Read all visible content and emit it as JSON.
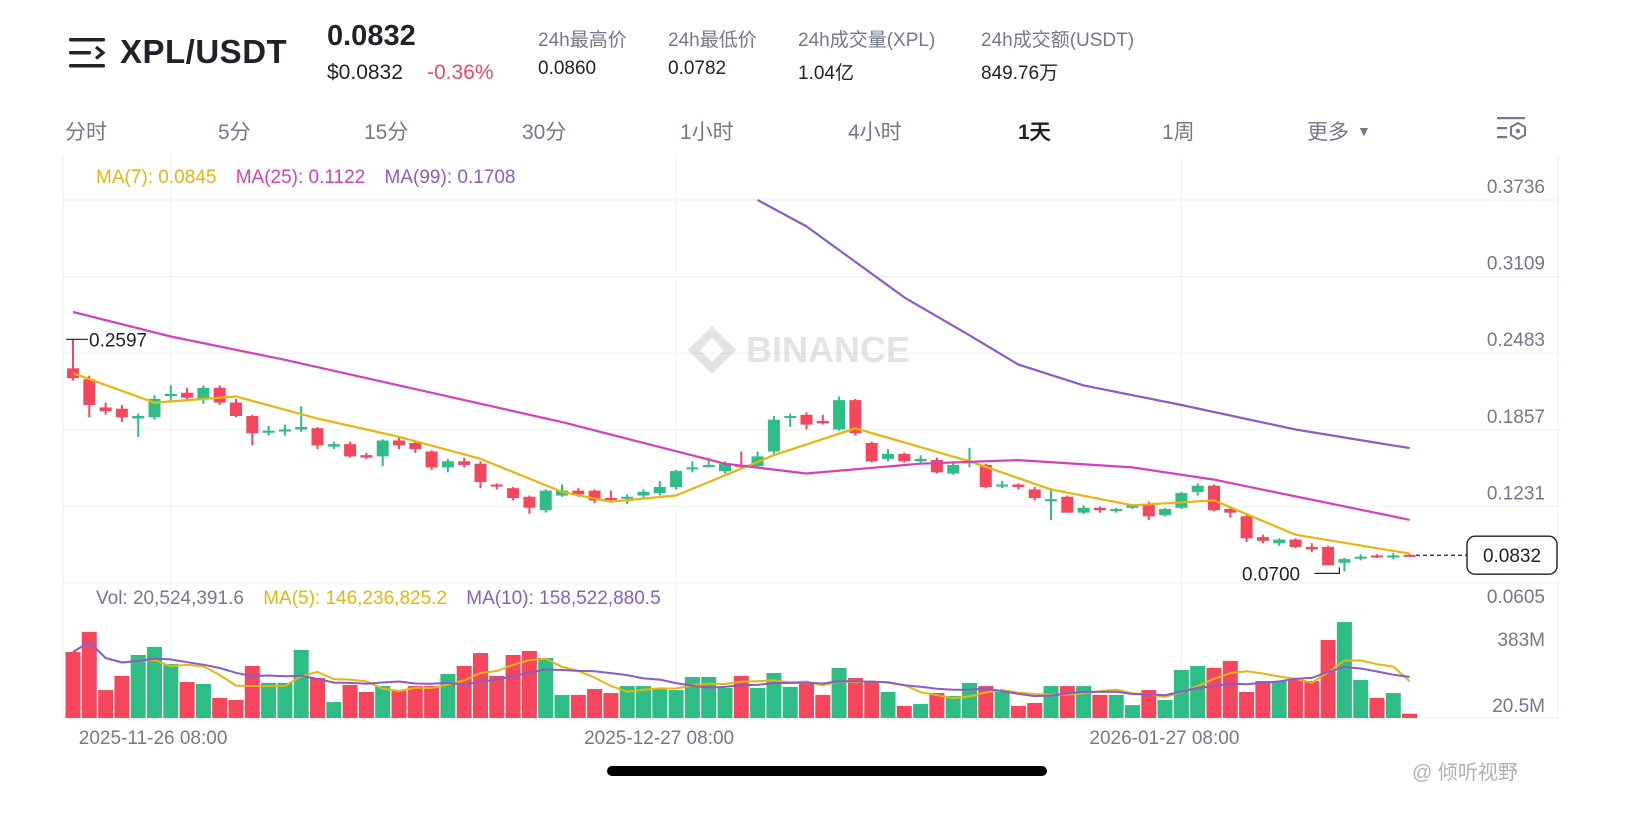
{
  "header": {
    "pair": "XPL/USDT",
    "last_price": "0.0832",
    "usd_price": "$0.0832",
    "change_pct": "-0.36%",
    "stats": [
      {
        "label": "24h最高价",
        "value": "0.0860"
      },
      {
        "label": "24h最低价",
        "value": "0.0782"
      },
      {
        "label": "24h成交量(XPL)",
        "value": "1.04亿"
      },
      {
        "label": "24h成交额(USDT)",
        "value": "849.76万"
      }
    ]
  },
  "tabs": [
    {
      "label": "分时"
    },
    {
      "label": "5分"
    },
    {
      "label": "15分"
    },
    {
      "label": "30分"
    },
    {
      "label": "1小时"
    },
    {
      "label": "4小时"
    },
    {
      "label": "1天",
      "active": true
    },
    {
      "label": "1周"
    },
    {
      "label": "更多"
    }
  ],
  "icons": {
    "menu": "menu-arrow-icon",
    "more_caret": "caret-down-icon",
    "settings": "chart-settings-icon"
  },
  "colors": {
    "up": "#2EBD85",
    "down": "#F6465D",
    "ma7": "#E9B40F",
    "ma25": "#D63FB8",
    "ma99": "#8A5CC8",
    "vol_ma5": "#E9B40F",
    "vol_ma10": "#8A5CC8"
  },
  "watermark": "BINANCE",
  "footer_watermark": "@ 倾听视野",
  "chart_data": {
    "type": "candlestick",
    "interval": "1天",
    "price_legend": [
      {
        "label": "MA(7): 0.0845",
        "color_key": "ma7"
      },
      {
        "label": "MA(25): 0.1122",
        "color_key": "ma25"
      },
      {
        "label": "MA(99): 0.1708",
        "color_key": "ma99"
      }
    ],
    "vol_legend": [
      {
        "label": "Vol: 20,524,391.6",
        "color_key": "text"
      },
      {
        "label": "MA(5): 146,236,825.2",
        "color_key": "vol_ma5"
      },
      {
        "label": "MA(10): 158,522,880.5",
        "color_key": "vol_ma10"
      }
    ],
    "price_ticks": [
      "0.3736",
      "0.3109",
      "0.2483",
      "0.1857",
      "0.1231",
      "0.0605"
    ],
    "price_range": [
      0.0605,
      0.3736
    ],
    "volume_ticks": [
      "383M",
      "20.5M"
    ],
    "volume_unit": "M",
    "x_ticks": [
      {
        "date": "2025-11-26",
        "label": "2025-11-26 08:00"
      },
      {
        "date": "2025-12-27",
        "label": "2025-12-27 08:00"
      },
      {
        "date": "2026-01-27",
        "label": "2026-01-27 08:00"
      }
    ],
    "high_marker": {
      "date": "2025-11-20",
      "label": "0.2597",
      "value": 0.2597
    },
    "low_marker": {
      "date": "2026-02-06",
      "label": "0.0700",
      "value": 0.07
    },
    "current_price": {
      "label": "0.0832",
      "value": 0.0832
    },
    "candles_columns": [
      "date",
      "open",
      "high",
      "low",
      "close",
      "volume_M"
    ],
    "candles": [
      [
        "2025-11-20",
        0.236,
        0.2597,
        0.226,
        0.228,
        312
      ],
      [
        "2025-11-21",
        0.227,
        0.23,
        0.196,
        0.206,
        407
      ],
      [
        "2025-11-22",
        0.204,
        0.208,
        0.198,
        0.201,
        132
      ],
      [
        "2025-11-23",
        0.203,
        0.206,
        0.192,
        0.196,
        199
      ],
      [
        "2025-11-24",
        0.195,
        0.199,
        0.18,
        0.197,
        298
      ],
      [
        "2025-11-25",
        0.196,
        0.214,
        0.194,
        0.211,
        336
      ],
      [
        "2025-11-26",
        0.214,
        0.222,
        0.208,
        0.215,
        255
      ],
      [
        "2025-11-27",
        0.216,
        0.22,
        0.21,
        0.212,
        170
      ],
      [
        "2025-11-28",
        0.211,
        0.222,
        0.207,
        0.22,
        161
      ],
      [
        "2025-11-29",
        0.22,
        0.222,
        0.206,
        0.208,
        95
      ],
      [
        "2025-11-30",
        0.208,
        0.211,
        0.196,
        0.197,
        85
      ],
      [
        "2025-12-01",
        0.197,
        0.198,
        0.173,
        0.183,
        246
      ],
      [
        "2025-12-02",
        0.184,
        0.189,
        0.181,
        0.185,
        166
      ],
      [
        "2025-12-03",
        0.185,
        0.19,
        0.181,
        0.186,
        166
      ],
      [
        "2025-12-04",
        0.186,
        0.205,
        0.184,
        0.188,
        322
      ],
      [
        "2025-12-05",
        0.187,
        0.188,
        0.17,
        0.173,
        189
      ],
      [
        "2025-12-06",
        0.172,
        0.176,
        0.17,
        0.174,
        76
      ],
      [
        "2025-12-07",
        0.174,
        0.176,
        0.163,
        0.164,
        156
      ],
      [
        "2025-12-08",
        0.165,
        0.167,
        0.162,
        0.163,
        123
      ],
      [
        "2025-12-09",
        0.164,
        0.178,
        0.156,
        0.177,
        151
      ],
      [
        "2025-12-10",
        0.177,
        0.18,
        0.17,
        0.173,
        132
      ],
      [
        "2025-12-11",
        0.175,
        0.177,
        0.167,
        0.17,
        151
      ],
      [
        "2025-12-12",
        0.168,
        0.169,
        0.153,
        0.155,
        151
      ],
      [
        "2025-12-13",
        0.155,
        0.162,
        0.151,
        0.16,
        208
      ],
      [
        "2025-12-14",
        0.16,
        0.163,
        0.155,
        0.157,
        246
      ],
      [
        "2025-12-15",
        0.158,
        0.16,
        0.138,
        0.143,
        307
      ],
      [
        "2025-12-16",
        0.141,
        0.142,
        0.137,
        0.14,
        199
      ],
      [
        "2025-12-17",
        0.138,
        0.139,
        0.128,
        0.13,
        298
      ],
      [
        "2025-12-18",
        0.131,
        0.132,
        0.117,
        0.122,
        317
      ],
      [
        "2025-12-19",
        0.12,
        0.137,
        0.118,
        0.136,
        284
      ],
      [
        "2025-12-20",
        0.132,
        0.141,
        0.131,
        0.136,
        109
      ],
      [
        "2025-12-21",
        0.136,
        0.138,
        0.131,
        0.133,
        109
      ],
      [
        "2025-12-22",
        0.136,
        0.137,
        0.126,
        0.128,
        137
      ],
      [
        "2025-12-23",
        0.13,
        0.136,
        0.127,
        0.129,
        118
      ],
      [
        "2025-12-24",
        0.13,
        0.133,
        0.125,
        0.131,
        151
      ],
      [
        "2025-12-25",
        0.132,
        0.137,
        0.129,
        0.135,
        151
      ],
      [
        "2025-12-26",
        0.134,
        0.144,
        0.132,
        0.139,
        142
      ],
      [
        "2025-12-27",
        0.139,
        0.153,
        0.137,
        0.152,
        132
      ],
      [
        "2025-12-28",
        0.154,
        0.16,
        0.151,
        0.155,
        194
      ],
      [
        "2025-12-29",
        0.156,
        0.163,
        0.155,
        0.157,
        194
      ],
      [
        "2025-12-30",
        0.152,
        0.16,
        0.15,
        0.158,
        142
      ],
      [
        "2025-12-31",
        0.157,
        0.168,
        0.154,
        0.156,
        199
      ],
      [
        "2026-01-01",
        0.156,
        0.168,
        0.155,
        0.164,
        142
      ],
      [
        "2026-01-02",
        0.168,
        0.197,
        0.166,
        0.194,
        213
      ],
      [
        "2026-01-03",
        0.196,
        0.199,
        0.188,
        0.197,
        147
      ],
      [
        "2026-01-04",
        0.198,
        0.2,
        0.186,
        0.19,
        161
      ],
      [
        "2026-01-05",
        0.193,
        0.198,
        0.19,
        0.191,
        109
      ],
      [
        "2026-01-06",
        0.186,
        0.213,
        0.185,
        0.21,
        237
      ],
      [
        "2026-01-07",
        0.21,
        0.211,
        0.181,
        0.183,
        189
      ],
      [
        "2026-01-08",
        0.175,
        0.176,
        0.159,
        0.16,
        175
      ],
      [
        "2026-01-09",
        0.162,
        0.17,
        0.16,
        0.166,
        123
      ],
      [
        "2026-01-10",
        0.166,
        0.167,
        0.159,
        0.16,
        57
      ],
      [
        "2026-01-11",
        0.16,
        0.165,
        0.159,
        0.162,
        66
      ],
      [
        "2026-01-12",
        0.161,
        0.163,
        0.15,
        0.151,
        118
      ],
      [
        "2026-01-13",
        0.15,
        0.16,
        0.149,
        0.157,
        104
      ],
      [
        "2026-01-14",
        0.159,
        0.171,
        0.155,
        0.16,
        166
      ],
      [
        "2026-01-15",
        0.157,
        0.158,
        0.138,
        0.139,
        151
      ],
      [
        "2026-01-16",
        0.14,
        0.144,
        0.138,
        0.141,
        123
      ],
      [
        "2026-01-17",
        0.141,
        0.142,
        0.137,
        0.139,
        57
      ],
      [
        "2026-01-18",
        0.137,
        0.139,
        0.128,
        0.13,
        71
      ],
      [
        "2026-01-19",
        0.128,
        0.138,
        0.112,
        0.129,
        151
      ],
      [
        "2026-01-20",
        0.131,
        0.132,
        0.118,
        0.118,
        151
      ],
      [
        "2026-01-21",
        0.118,
        0.124,
        0.117,
        0.122,
        151
      ],
      [
        "2026-01-22",
        0.122,
        0.123,
        0.118,
        0.12,
        109
      ],
      [
        "2026-01-23",
        0.12,
        0.122,
        0.118,
        0.121,
        109
      ],
      [
        "2026-01-24",
        0.122,
        0.125,
        0.121,
        0.124,
        61
      ],
      [
        "2026-01-25",
        0.125,
        0.127,
        0.112,
        0.115,
        132
      ],
      [
        "2026-01-26",
        0.116,
        0.122,
        0.115,
        0.121,
        85
      ],
      [
        "2026-01-27",
        0.122,
        0.135,
        0.121,
        0.134,
        227
      ],
      [
        "2026-01-28",
        0.135,
        0.142,
        0.132,
        0.14,
        246
      ],
      [
        "2026-01-29",
        0.14,
        0.141,
        0.119,
        0.12,
        237
      ],
      [
        "2026-01-30",
        0.121,
        0.123,
        0.114,
        0.118,
        270
      ],
      [
        "2026-01-31",
        0.115,
        0.116,
        0.094,
        0.097,
        123
      ],
      [
        "2026-02-01",
        0.098,
        0.1,
        0.093,
        0.095,
        175
      ],
      [
        "2026-02-02",
        0.093,
        0.097,
        0.091,
        0.096,
        175
      ],
      [
        "2026-02-03",
        0.096,
        0.097,
        0.089,
        0.09,
        184
      ],
      [
        "2026-02-04",
        0.09,
        0.093,
        0.086,
        0.088,
        175
      ],
      [
        "2026-02-05",
        0.09,
        0.091,
        0.075,
        0.075,
        369
      ],
      [
        "2026-02-06",
        0.077,
        0.081,
        0.07,
        0.08,
        454
      ],
      [
        "2026-02-07",
        0.081,
        0.084,
        0.079,
        0.082,
        180
      ],
      [
        "2026-02-08",
        0.083,
        0.084,
        0.081,
        0.082,
        95
      ],
      [
        "2026-02-09",
        0.082,
        0.085,
        0.08,
        0.083,
        118
      ],
      [
        "2026-02-10",
        0.0835,
        0.0845,
        0.0825,
        0.0832,
        20.5
      ]
    ],
    "ma_lines": {
      "ma7": [
        [
          "2025-11-20",
          0.232
        ],
        [
          "2025-11-25",
          0.208
        ],
        [
          "2025-11-30",
          0.213
        ],
        [
          "2025-12-05",
          0.195
        ],
        [
          "2025-12-10",
          0.18
        ],
        [
          "2025-12-15",
          0.162
        ],
        [
          "2025-12-20",
          0.135
        ],
        [
          "2025-12-23",
          0.127
        ],
        [
          "2025-12-27",
          0.132
        ],
        [
          "2026-01-02",
          0.165
        ],
        [
          "2026-01-07",
          0.187
        ],
        [
          "2026-01-14",
          0.16
        ],
        [
          "2026-01-19",
          0.137
        ],
        [
          "2026-01-24",
          0.124
        ],
        [
          "2026-01-29",
          0.128
        ],
        [
          "2026-02-03",
          0.1
        ],
        [
          "2026-02-10",
          0.0845
        ]
      ],
      "ma25": [
        [
          "2025-11-20",
          0.282
        ],
        [
          "2025-11-26",
          0.262
        ],
        [
          "2025-12-03",
          0.243
        ],
        [
          "2025-12-10",
          0.222
        ],
        [
          "2025-12-20",
          0.192
        ],
        [
          "2025-12-30",
          0.158
        ],
        [
          "2026-01-04",
          0.15
        ],
        [
          "2026-01-11",
          0.158
        ],
        [
          "2026-01-17",
          0.161
        ],
        [
          "2026-01-24",
          0.155
        ],
        [
          "2026-01-29",
          0.145
        ],
        [
          "2026-02-10",
          0.1122
        ]
      ],
      "ma99": [
        [
          "2026-01-01",
          0.3736
        ],
        [
          "2026-01-04",
          0.352
        ],
        [
          "2026-01-07",
          0.323
        ],
        [
          "2026-01-10",
          0.294
        ],
        [
          "2026-01-14",
          0.263
        ],
        [
          "2026-01-17",
          0.239
        ],
        [
          "2026-01-21",
          0.222
        ],
        [
          "2026-01-27",
          0.206
        ],
        [
          "2026-02-03",
          0.186
        ],
        [
          "2026-02-10",
          0.1708
        ]
      ]
    }
  }
}
